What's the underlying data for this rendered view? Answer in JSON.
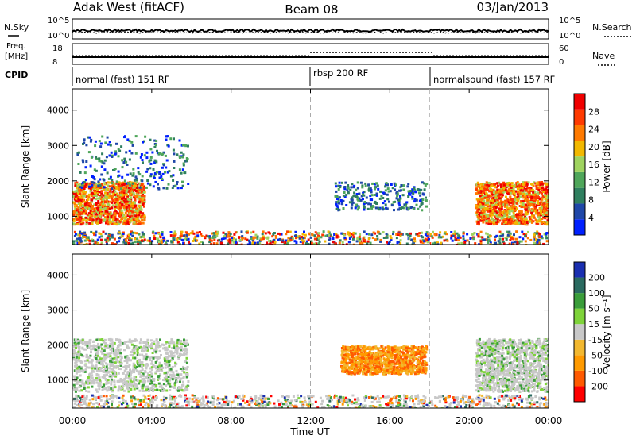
{
  "header": {
    "station": "Adak West (fitACF)",
    "beam": "Beam 08",
    "date": "03/Jan/2013"
  },
  "sky_panel": {
    "left_label": "N.Sky",
    "right_label": "N.Search",
    "left_ticks": [
      "10^5",
      "10^0"
    ],
    "right_ticks": [
      "10^5",
      "10^0"
    ]
  },
  "freq_panel": {
    "left_label": "Freq.",
    "left_unit": "[MHz]",
    "right_label": "Nave",
    "left_ticks": [
      "18",
      "8"
    ],
    "right_ticks": [
      "60",
      "0"
    ]
  },
  "cpid_panel": {
    "label": "CPID",
    "segments": [
      {
        "label": "normal (fast) 151 RF",
        "start": "00:00",
        "end": "12:00"
      },
      {
        "label": "rbsp 200 RF",
        "start": "12:00",
        "end": "18:00"
      },
      {
        "label": "normalsound (fast) 157 RF",
        "start": "18:00",
        "end": "24:00"
      }
    ]
  },
  "colors": {
    "power_scale": [
      "#0020ff",
      "#1f47a8",
      "#2f7f5f",
      "#4fa65a",
      "#9fd35f",
      "#f2b800",
      "#ff7a00",
      "#ff3a00",
      "#f00000"
    ],
    "velocity_scale": [
      "#ff0000",
      "#ff5a00",
      "#ff9a00",
      "#f2b830",
      "#c8c8c8",
      "#7ed33a",
      "#3a9d3a",
      "#2a6a60",
      "#1a2fb0"
    ]
  },
  "chart_data": [
    {
      "type": "heatmap",
      "name": "power",
      "ylabel": "Slant Range [km]",
      "yticks": [
        "1000",
        "2000",
        "3000",
        "4000"
      ],
      "ylim": [
        200,
        4600
      ],
      "xlim": [
        "00:00",
        "24:00"
      ],
      "xticks": [
        "00:00",
        "04:00",
        "08:00",
        "12:00",
        "16:00",
        "20:00",
        "00:00"
      ],
      "colorbar": {
        "label": "Power [dB]",
        "ticks": [
          "4",
          "8",
          "12",
          "16",
          "20",
          "24",
          "28"
        ],
        "range": [
          0,
          32
        ]
      },
      "echo_regions": [
        {
          "t0": 0.0,
          "t1": 3.6,
          "r0": 800,
          "r1": 2000,
          "level": "high"
        },
        {
          "t0": 0.2,
          "t1": 5.8,
          "r0": 1800,
          "r1": 3300,
          "level": "low"
        },
        {
          "t0": 13.2,
          "t1": 17.8,
          "r0": 1200,
          "r1": 2000,
          "level": "low"
        },
        {
          "t0": 20.3,
          "t1": 24.0,
          "r0": 800,
          "r1": 2000,
          "level": "high"
        },
        {
          "t0": 0.0,
          "t1": 24.0,
          "r0": 200,
          "r1": 600,
          "level": "mixed"
        }
      ]
    },
    {
      "type": "heatmap",
      "name": "velocity",
      "ylabel": "Slant Range [km]",
      "yticks": [
        "1000",
        "2000",
        "3000",
        "4000"
      ],
      "ylim": [
        200,
        4600
      ],
      "xlim": [
        "00:00",
        "24:00"
      ],
      "xlabel": "Time UT",
      "xticks": [
        "00:00",
        "04:00",
        "08:00",
        "12:00",
        "16:00",
        "20:00",
        "00:00"
      ],
      "colorbar": {
        "label": "Velocity [m s⁻¹]",
        "ticks": [
          "-200",
          "-100",
          "-50",
          "-15",
          "15",
          "50",
          "100",
          "200"
        ],
        "range": [
          -250,
          250
        ]
      },
      "echo_regions": [
        {
          "t0": 0.0,
          "t1": 5.8,
          "r0": 700,
          "r1": 2200,
          "level": "ground"
        },
        {
          "t0": 13.5,
          "t1": 17.8,
          "r0": 1200,
          "r1": 2000,
          "level": "negative"
        },
        {
          "t0": 20.3,
          "t1": 24.0,
          "r0": 700,
          "r1": 2200,
          "level": "ground"
        },
        {
          "t0": 0.0,
          "t1": 24.0,
          "r0": 200,
          "r1": 600,
          "level": "mixed"
        }
      ]
    }
  ]
}
